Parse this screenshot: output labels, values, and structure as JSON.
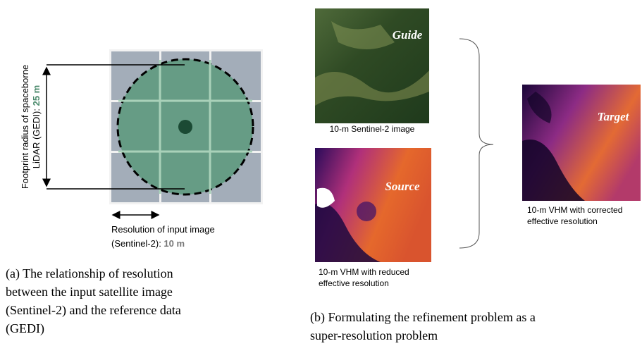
{
  "panel_a": {
    "footprint_label": {
      "line1": "Footprint radius of spaceborne",
      "line2": "LiDAR (GEDI): ",
      "value": "25 m"
    },
    "resolution_label": {
      "line1": "Resolution of input image",
      "line2": "(Sentinel-2): ",
      "value": "10 m"
    },
    "caption": [
      "(a) The relationship of resolution",
      "between the input satellite image",
      "(Sentinel-2) and the reference data",
      "(GEDI)"
    ]
  },
  "panel_b": {
    "guide": {
      "tag": "Guide",
      "caption": [
        "10-m Sentinel-2 image"
      ]
    },
    "source": {
      "tag": "Source",
      "caption": [
        "10-m VHM with reduced",
        "effective resolution"
      ]
    },
    "target": {
      "tag": "Target",
      "caption": [
        "10-m VHM with corrected",
        "effective resolution"
      ]
    },
    "caption": [
      "(b) Formulating the refinement problem as a",
      "super-resolution problem"
    ]
  }
}
